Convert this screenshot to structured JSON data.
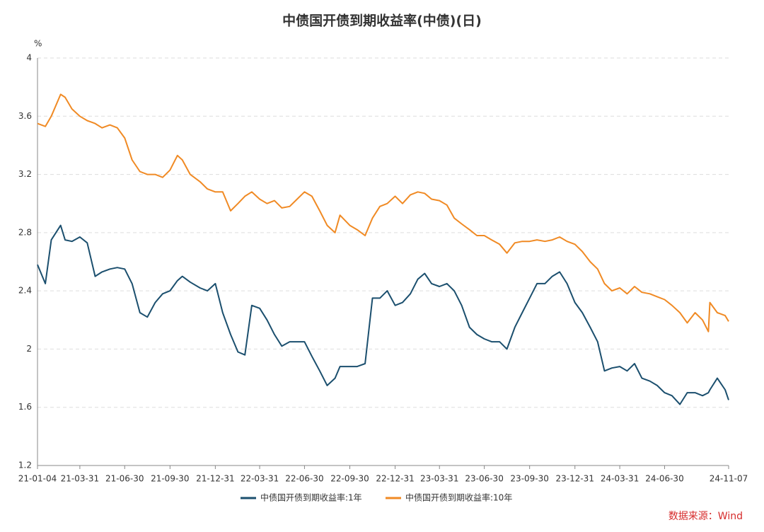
{
  "chart_data": {
    "type": "line",
    "title": "中债国开债到期收益率(中债)(日)",
    "y_unit": "%",
    "source": "数据来源：Wind",
    "x": [
      "21-01-04",
      "21-01-20",
      "21-02-01",
      "21-02-20",
      "21-03-01",
      "21-03-15",
      "21-03-31",
      "21-04-15",
      "21-05-01",
      "21-05-15",
      "21-05-31",
      "21-06-15",
      "21-06-30",
      "21-07-15",
      "21-07-31",
      "21-08-15",
      "21-08-31",
      "21-09-15",
      "21-09-30",
      "21-10-15",
      "21-10-25",
      "21-11-10",
      "21-11-30",
      "21-12-15",
      "21-12-31",
      "22-01-15",
      "22-01-31",
      "22-02-15",
      "22-03-01",
      "22-03-15",
      "22-03-31",
      "22-04-15",
      "22-04-30",
      "22-05-15",
      "22-05-31",
      "22-06-15",
      "22-06-30",
      "22-07-15",
      "22-07-31",
      "22-08-15",
      "22-08-31",
      "22-09-10",
      "22-09-30",
      "22-10-15",
      "22-10-31",
      "22-11-15",
      "22-11-30",
      "22-12-15",
      "22-12-31",
      "23-01-15",
      "23-01-31",
      "23-02-15",
      "23-03-01",
      "23-03-15",
      "23-03-31",
      "23-04-15",
      "23-04-30",
      "23-05-15",
      "23-05-31",
      "23-06-15",
      "23-06-30",
      "23-07-15",
      "23-07-31",
      "23-08-15",
      "23-08-31",
      "23-09-15",
      "23-09-30",
      "23-10-15",
      "23-10-31",
      "23-11-15",
      "23-11-30",
      "23-12-15",
      "23-12-31",
      "24-01-15",
      "24-01-31",
      "24-02-15",
      "24-02-29",
      "24-03-15",
      "24-03-31",
      "24-04-15",
      "24-04-30",
      "24-05-15",
      "24-05-31",
      "24-06-15",
      "24-06-30",
      "24-07-15",
      "24-07-31",
      "24-08-15",
      "24-08-31",
      "24-09-15",
      "24-09-27",
      "24-09-30",
      "24-10-15",
      "24-10-31",
      "24-11-07"
    ],
    "series": [
      {
        "name": "中债国开债到期收益率:1年",
        "color": "#1b4f6e",
        "values": [
          2.58,
          2.45,
          2.75,
          2.85,
          2.75,
          2.74,
          2.77,
          2.73,
          2.5,
          2.53,
          2.55,
          2.56,
          2.55,
          2.45,
          2.25,
          2.22,
          2.32,
          2.38,
          2.4,
          2.47,
          2.5,
          2.46,
          2.42,
          2.4,
          2.45,
          2.25,
          2.1,
          1.98,
          1.96,
          2.3,
          2.28,
          2.2,
          2.1,
          2.02,
          2.05,
          2.05,
          2.05,
          1.95,
          1.85,
          1.75,
          1.8,
          1.88,
          1.88,
          1.88,
          1.9,
          2.35,
          2.35,
          2.4,
          2.3,
          2.32,
          2.38,
          2.48,
          2.52,
          2.45,
          2.43,
          2.45,
          2.4,
          2.3,
          2.15,
          2.1,
          2.07,
          2.05,
          2.05,
          2.0,
          2.15,
          2.25,
          2.35,
          2.45,
          2.45,
          2.5,
          2.53,
          2.45,
          2.32,
          2.25,
          2.15,
          2.05,
          1.85,
          1.87,
          1.88,
          1.85,
          1.9,
          1.8,
          1.78,
          1.75,
          1.7,
          1.68,
          1.62,
          1.7,
          1.7,
          1.68,
          1.7,
          1.72,
          1.8,
          1.72,
          1.65
        ]
      },
      {
        "name": "中债国开债到期收益率:10年",
        "color": "#f08a24",
        "values": [
          3.55,
          3.53,
          3.6,
          3.75,
          3.73,
          3.65,
          3.6,
          3.57,
          3.55,
          3.52,
          3.54,
          3.52,
          3.45,
          3.3,
          3.22,
          3.2,
          3.2,
          3.18,
          3.23,
          3.33,
          3.3,
          3.2,
          3.15,
          3.1,
          3.08,
          3.08,
          2.95,
          3.0,
          3.05,
          3.08,
          3.03,
          3.0,
          3.02,
          2.97,
          2.98,
          3.03,
          3.08,
          3.05,
          2.95,
          2.85,
          2.8,
          2.92,
          2.85,
          2.82,
          2.78,
          2.9,
          2.98,
          3.0,
          3.05,
          3.0,
          3.06,
          3.08,
          3.07,
          3.03,
          3.02,
          2.99,
          2.9,
          2.86,
          2.82,
          2.78,
          2.78,
          2.75,
          2.72,
          2.66,
          2.73,
          2.74,
          2.74,
          2.75,
          2.74,
          2.75,
          2.77,
          2.74,
          2.72,
          2.67,
          2.6,
          2.55,
          2.45,
          2.4,
          2.42,
          2.38,
          2.43,
          2.39,
          2.38,
          2.36,
          2.34,
          2.3,
          2.25,
          2.18,
          2.25,
          2.2,
          2.12,
          2.32,
          2.25,
          2.23,
          2.19
        ]
      }
    ],
    "xlim": [
      "21-01-04",
      "24-11-07"
    ],
    "xticks": [
      "21-01-04",
      "21-03-31",
      "21-06-30",
      "21-09-30",
      "21-12-31",
      "22-03-31",
      "22-06-30",
      "22-09-30",
      "22-12-31",
      "23-03-31",
      "23-06-30",
      "23-09-30",
      "23-12-31",
      "24-03-31",
      "24-06-30",
      "24-11-07"
    ],
    "ylim": [
      1.2,
      4
    ],
    "yticks": [
      1.2,
      1.6,
      2,
      2.4,
      2.8,
      3.2,
      3.6,
      4
    ],
    "grid": true,
    "legend": "bottom"
  }
}
